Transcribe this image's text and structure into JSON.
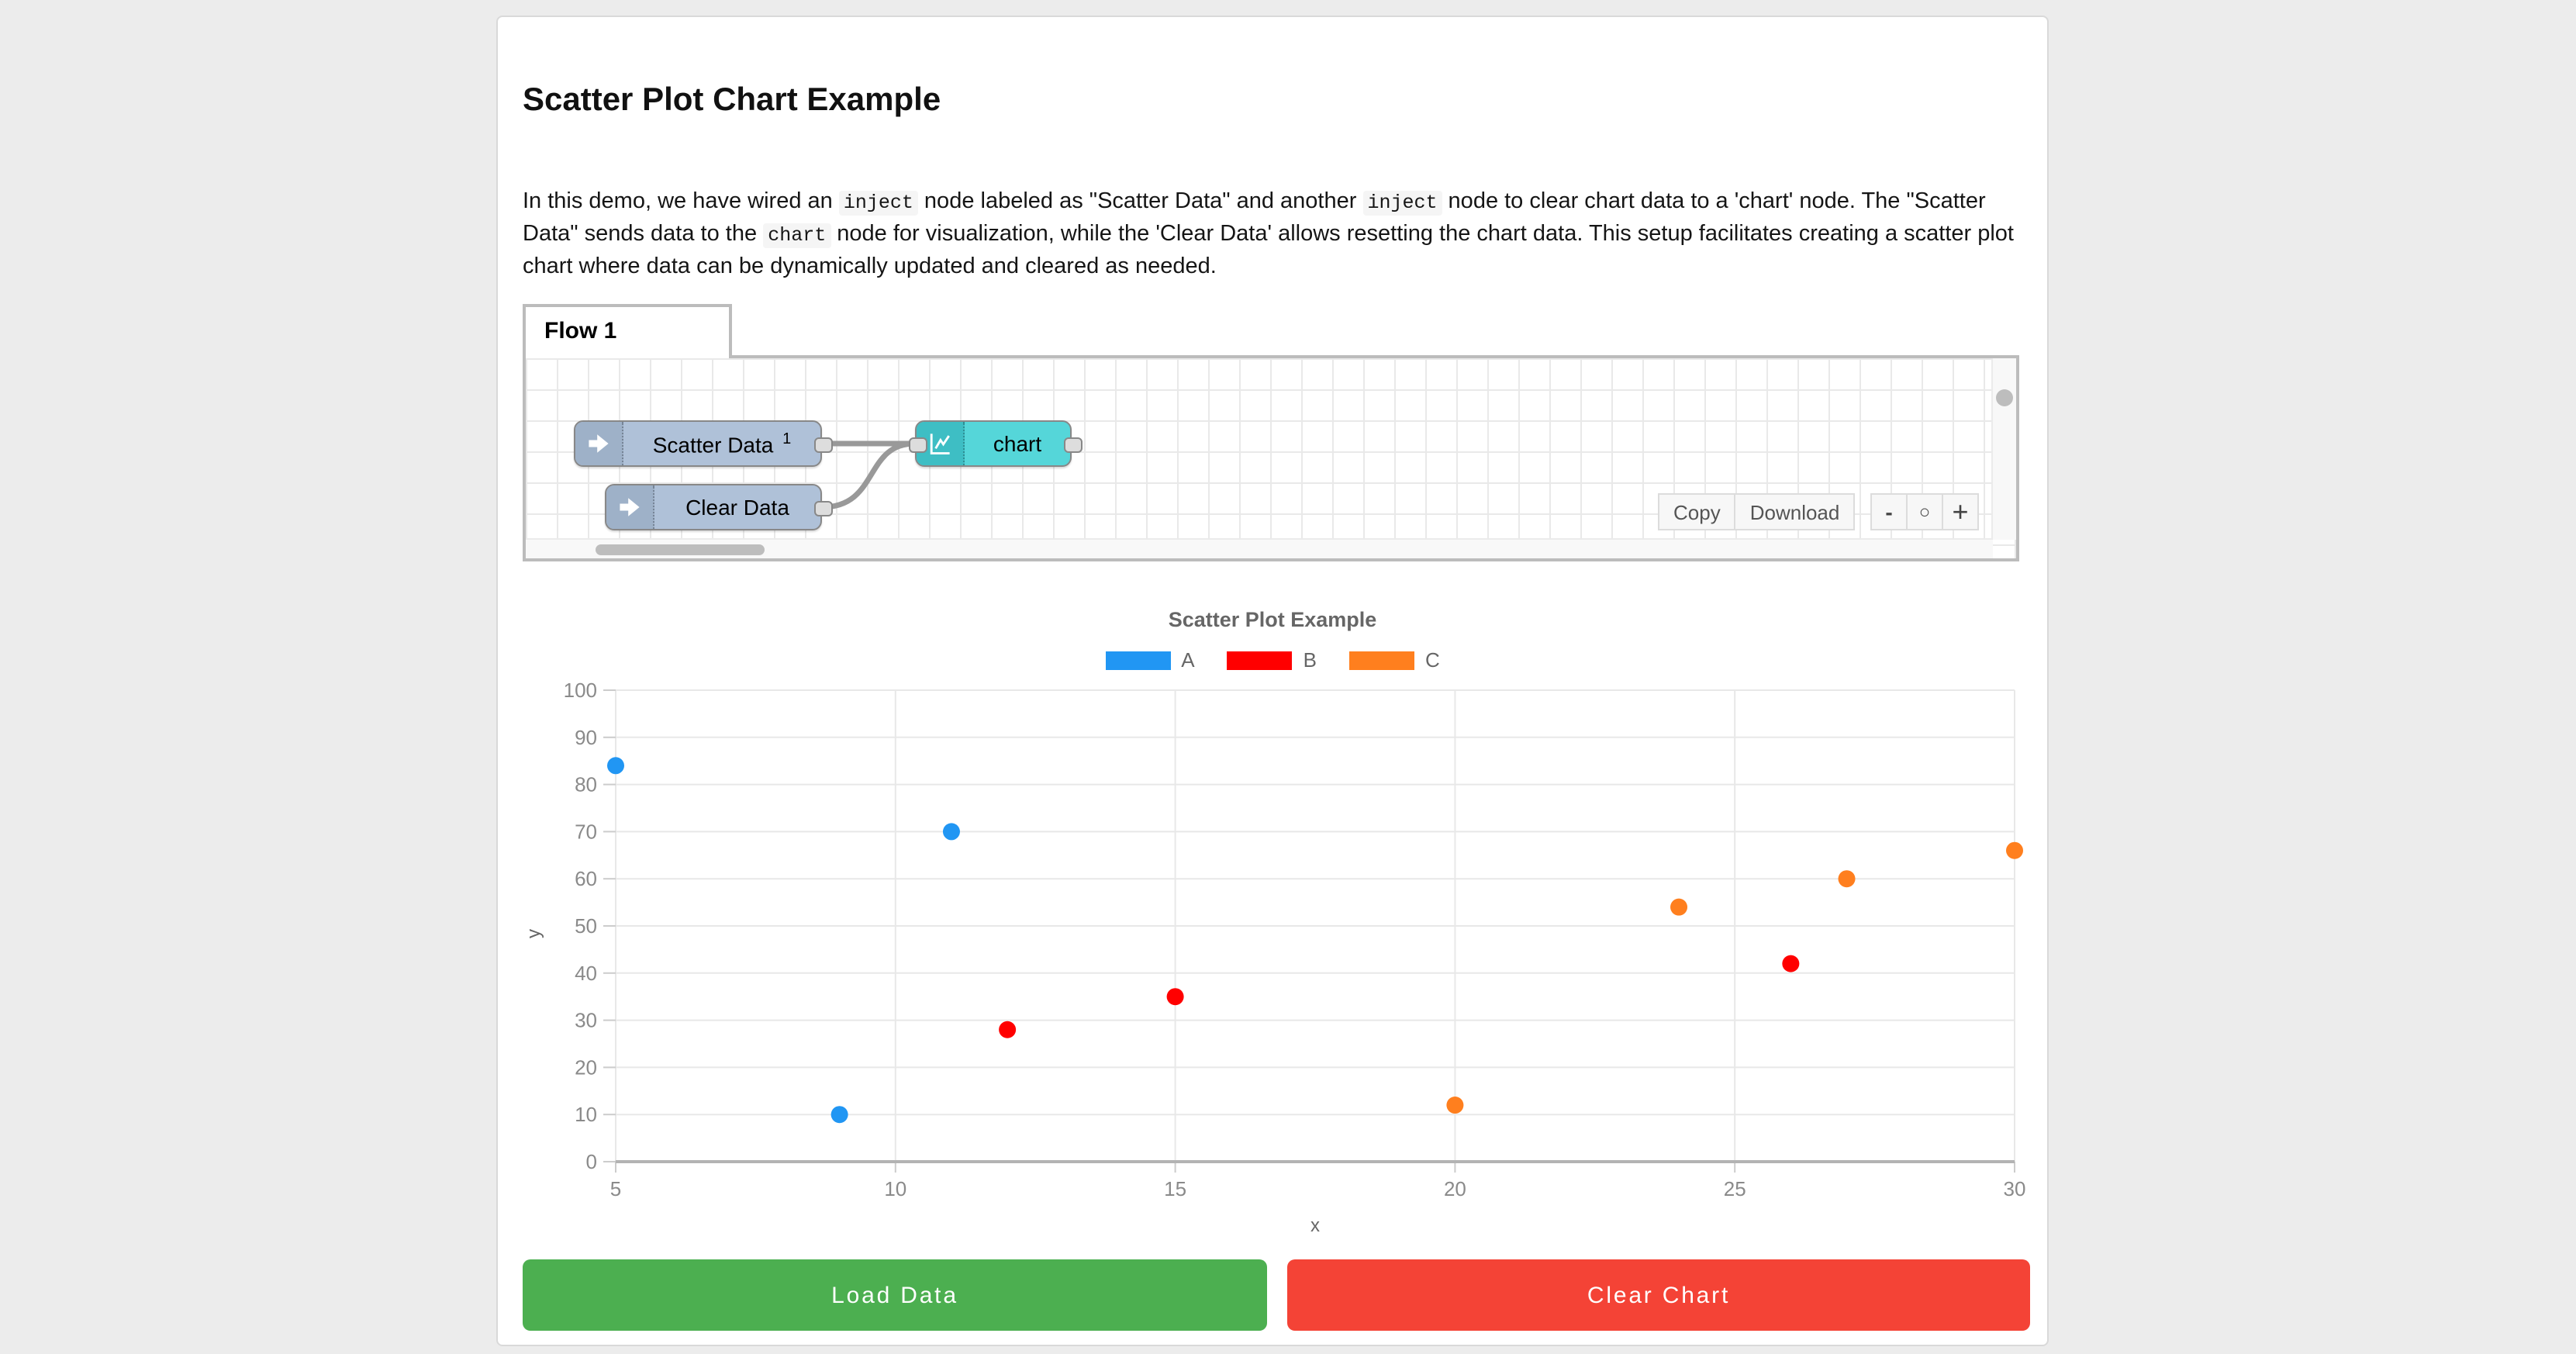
{
  "page": {
    "title": "Scatter Plot Chart Example",
    "description_segments": [
      {
        "text": "In this demo, we have wired an ",
        "code": false
      },
      {
        "text": "inject",
        "code": true
      },
      {
        "text": " node labeled as \"Scatter Data\" and another ",
        "code": false
      },
      {
        "text": "inject",
        "code": true
      },
      {
        "text": " node to clear chart data to a 'chart' node. The \"Scatter Data\" sends data to the ",
        "code": false
      },
      {
        "text": "chart",
        "code": true
      },
      {
        "text": " node for visualization, while the 'Clear Data' allows resetting the chart data. This setup facilitates creating a scatter plot chart where data can be dynamically updated and cleared as needed.",
        "code": false
      }
    ]
  },
  "flow_editor": {
    "tab_label": "Flow 1",
    "nodes": [
      {
        "label": "Scatter Data",
        "badge": "1",
        "type": "inject"
      },
      {
        "label": "Clear Data",
        "badge": "",
        "type": "inject"
      },
      {
        "label": "chart",
        "badge": "",
        "type": "chart"
      }
    ],
    "toolbar": {
      "copy_label": "Copy",
      "download_label": "Download",
      "zoom_out_label": "-",
      "zoom_reset_label": "○",
      "zoom_in_label": "+"
    }
  },
  "chart_data": {
    "type": "scatter",
    "title": "Scatter Plot Example",
    "xlabel": "x",
    "ylabel": "y",
    "xlim": [
      5,
      30
    ],
    "ylim": [
      0,
      100
    ],
    "x_ticks": [
      5,
      10,
      15,
      20,
      25,
      30
    ],
    "y_ticks": [
      0,
      10,
      20,
      30,
      40,
      50,
      60,
      70,
      80,
      90,
      100
    ],
    "grid": true,
    "legend_position": "top",
    "series": [
      {
        "name": "A",
        "color": "#2196f3",
        "points": [
          [
            5,
            84
          ],
          [
            9,
            10
          ],
          [
            11,
            70
          ]
        ]
      },
      {
        "name": "B",
        "color": "#ff0000",
        "points": [
          [
            12,
            28
          ],
          [
            15,
            35
          ],
          [
            26,
            42
          ]
        ]
      },
      {
        "name": "C",
        "color": "#ff7f1e",
        "points": [
          [
            20,
            12
          ],
          [
            24,
            54
          ],
          [
            27,
            60
          ],
          [
            30,
            66
          ]
        ]
      }
    ]
  },
  "actions": {
    "load_label": "Load Data",
    "clear_label": "Clear Chart"
  },
  "colors": {
    "load_button": "#4caf50",
    "clear_button": "#f44336",
    "node_inject_body": "#afc1d8",
    "node_inject_icon": "#9eb1c8",
    "node_chart_body": "#55d6d9",
    "node_chart_icon": "#3ebec4",
    "wire": "#999999"
  }
}
